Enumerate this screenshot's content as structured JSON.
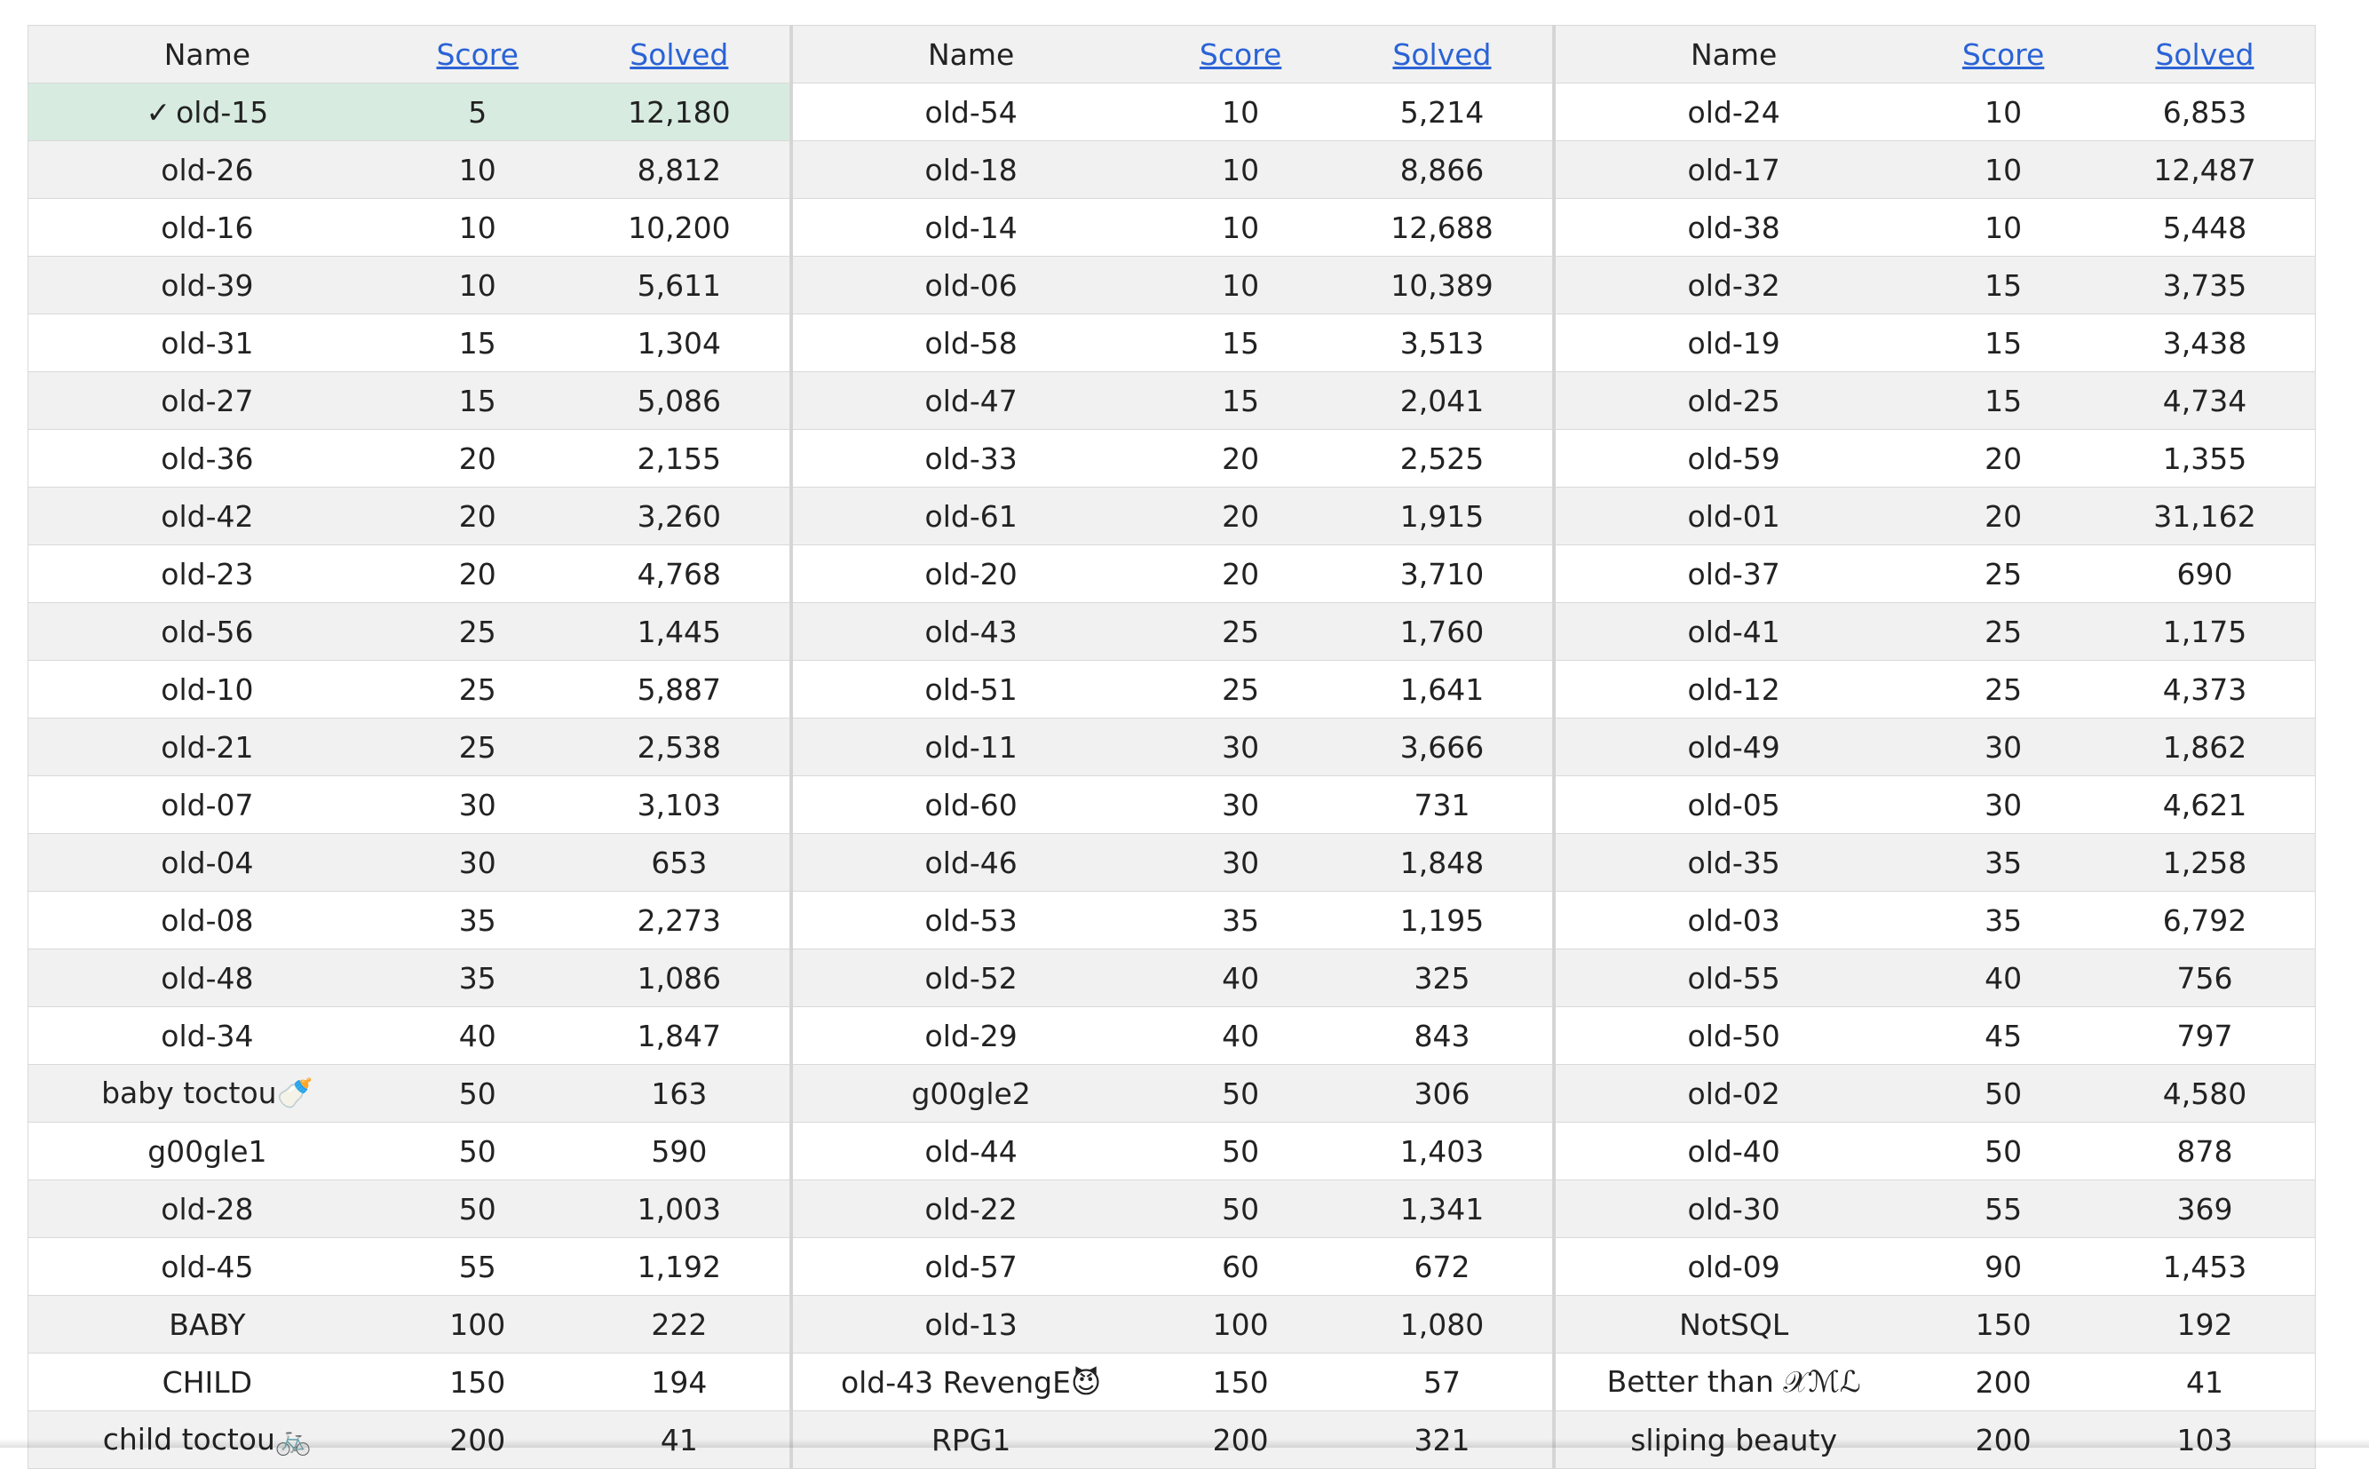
{
  "headers": {
    "name": "Name",
    "score": "Score",
    "solved": "Solved"
  },
  "solved_mark": "✓",
  "columns": [
    {
      "rows": [
        {
          "name": "old-15",
          "score": "5",
          "solved": "12,180",
          "done": true
        },
        {
          "name": "old-26",
          "score": "10",
          "solved": "8,812"
        },
        {
          "name": "old-16",
          "score": "10",
          "solved": "10,200"
        },
        {
          "name": "old-39",
          "score": "10",
          "solved": "5,611"
        },
        {
          "name": "old-31",
          "score": "15",
          "solved": "1,304"
        },
        {
          "name": "old-27",
          "score": "15",
          "solved": "5,086"
        },
        {
          "name": "old-36",
          "score": "20",
          "solved": "2,155"
        },
        {
          "name": "old-42",
          "score": "20",
          "solved": "3,260"
        },
        {
          "name": "old-23",
          "score": "20",
          "solved": "4,768"
        },
        {
          "name": "old-56",
          "score": "25",
          "solved": "1,445"
        },
        {
          "name": "old-10",
          "score": "25",
          "solved": "5,887"
        },
        {
          "name": "old-21",
          "score": "25",
          "solved": "2,538"
        },
        {
          "name": "old-07",
          "score": "30",
          "solved": "3,103"
        },
        {
          "name": "old-04",
          "score": "30",
          "solved": "653"
        },
        {
          "name": "old-08",
          "score": "35",
          "solved": "2,273"
        },
        {
          "name": "old-48",
          "score": "35",
          "solved": "1,086"
        },
        {
          "name": "old-34",
          "score": "40",
          "solved": "1,847"
        },
        {
          "name": "baby toctou🍼",
          "score": "50",
          "solved": "163"
        },
        {
          "name": "g00gle1",
          "score": "50",
          "solved": "590"
        },
        {
          "name": "old-28",
          "score": "50",
          "solved": "1,003"
        },
        {
          "name": "old-45",
          "score": "55",
          "solved": "1,192"
        },
        {
          "name": "BABY",
          "score": "100",
          "solved": "222"
        },
        {
          "name": "CHILD",
          "score": "150",
          "solved": "194"
        },
        {
          "name": "child toctou🚲",
          "score": "200",
          "solved": "41"
        }
      ]
    },
    {
      "rows": [
        {
          "name": "old-54",
          "score": "10",
          "solved": "5,214"
        },
        {
          "name": "old-18",
          "score": "10",
          "solved": "8,866"
        },
        {
          "name": "old-14",
          "score": "10",
          "solved": "12,688"
        },
        {
          "name": "old-06",
          "score": "10",
          "solved": "10,389"
        },
        {
          "name": "old-58",
          "score": "15",
          "solved": "3,513"
        },
        {
          "name": "old-47",
          "score": "15",
          "solved": "2,041"
        },
        {
          "name": "old-33",
          "score": "20",
          "solved": "2,525"
        },
        {
          "name": "old-61",
          "score": "20",
          "solved": "1,915"
        },
        {
          "name": "old-20",
          "score": "20",
          "solved": "3,710"
        },
        {
          "name": "old-43",
          "score": "25",
          "solved": "1,760"
        },
        {
          "name": "old-51",
          "score": "25",
          "solved": "1,641"
        },
        {
          "name": "old-11",
          "score": "30",
          "solved": "3,666"
        },
        {
          "name": "old-60",
          "score": "30",
          "solved": "731"
        },
        {
          "name": "old-46",
          "score": "30",
          "solved": "1,848"
        },
        {
          "name": "old-53",
          "score": "35",
          "solved": "1,195"
        },
        {
          "name": "old-52",
          "score": "40",
          "solved": "325"
        },
        {
          "name": "old-29",
          "score": "40",
          "solved": "843"
        },
        {
          "name": "g00gle2",
          "score": "50",
          "solved": "306"
        },
        {
          "name": "old-44",
          "score": "50",
          "solved": "1,403"
        },
        {
          "name": "old-22",
          "score": "50",
          "solved": "1,341"
        },
        {
          "name": "old-57",
          "score": "60",
          "solved": "672"
        },
        {
          "name": "old-13",
          "score": "100",
          "solved": "1,080"
        },
        {
          "name": "old-43 RevengE😈",
          "score": "150",
          "solved": "57"
        },
        {
          "name": "RPG1",
          "score": "200",
          "solved": "321"
        }
      ]
    },
    {
      "rows": [
        {
          "name": "old-24",
          "score": "10",
          "solved": "6,853"
        },
        {
          "name": "old-17",
          "score": "10",
          "solved": "12,487"
        },
        {
          "name": "old-38",
          "score": "10",
          "solved": "5,448"
        },
        {
          "name": "old-32",
          "score": "15",
          "solved": "3,735"
        },
        {
          "name": "old-19",
          "score": "15",
          "solved": "3,438"
        },
        {
          "name": "old-25",
          "score": "15",
          "solved": "4,734"
        },
        {
          "name": "old-59",
          "score": "20",
          "solved": "1,355"
        },
        {
          "name": "old-01",
          "score": "20",
          "solved": "31,162"
        },
        {
          "name": "old-37",
          "score": "25",
          "solved": "690"
        },
        {
          "name": "old-41",
          "score": "25",
          "solved": "1,175"
        },
        {
          "name": "old-12",
          "score": "25",
          "solved": "4,373"
        },
        {
          "name": "old-49",
          "score": "30",
          "solved": "1,862"
        },
        {
          "name": "old-05",
          "score": "30",
          "solved": "4,621"
        },
        {
          "name": "old-35",
          "score": "35",
          "solved": "1,258"
        },
        {
          "name": "old-03",
          "score": "35",
          "solved": "6,792"
        },
        {
          "name": "old-55",
          "score": "40",
          "solved": "756"
        },
        {
          "name": "old-50",
          "score": "45",
          "solved": "797"
        },
        {
          "name": "old-02",
          "score": "50",
          "solved": "4,580"
        },
        {
          "name": "old-40",
          "score": "50",
          "solved": "878"
        },
        {
          "name": "old-30",
          "score": "55",
          "solved": "369"
        },
        {
          "name": "old-09",
          "score": "90",
          "solved": "1,453"
        },
        {
          "name": "NotSQL",
          "score": "150",
          "solved": "192"
        },
        {
          "name": "Better than 𝒳ℳℒ",
          "score": "200",
          "solved": "41"
        },
        {
          "name": "sliping beauty",
          "score": "200",
          "solved": "103"
        }
      ]
    }
  ]
}
